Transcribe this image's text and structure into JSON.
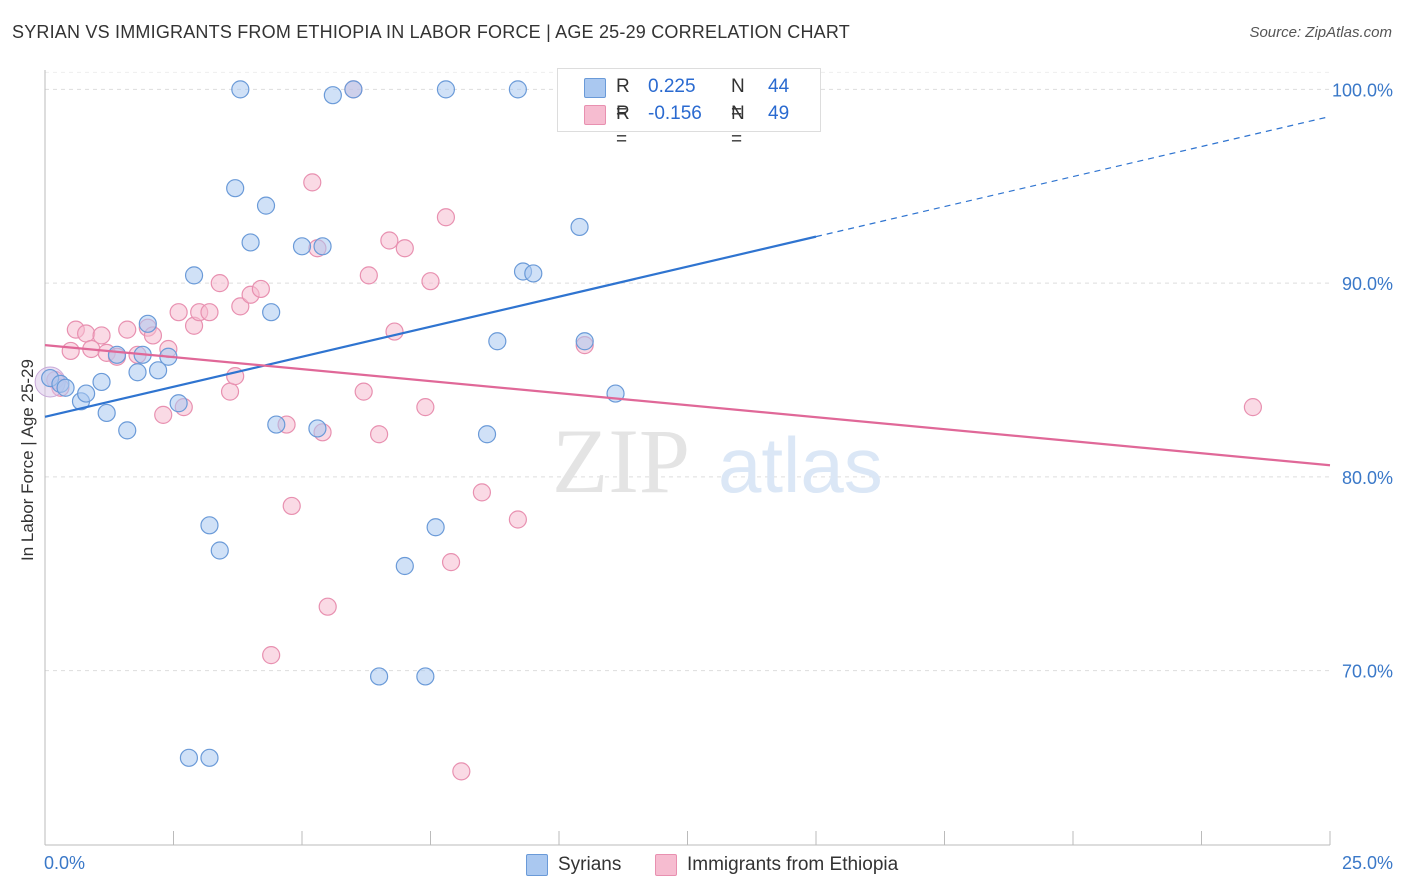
{
  "header": {
    "title": "SYRIAN VS IMMIGRANTS FROM ETHIOPIA IN LABOR FORCE | AGE 25-29 CORRELATION CHART",
    "source": "Source: ZipAtlas.com"
  },
  "watermark": {
    "zip": "ZIP",
    "atlas": "atlas"
  },
  "legend": {
    "rows": [
      {
        "r_label": "R =",
        "r_value": "0.225",
        "n_label": "N =",
        "n_value": "44"
      },
      {
        "r_label": "R =",
        "r_value": "-0.156",
        "n_label": "N =",
        "n_value": "49"
      }
    ]
  },
  "colors": {
    "syrians_fill": "#aac8f0",
    "syrians_stroke": "#6a9ad8",
    "syrians_line": "#2f74d0",
    "ethiopia_fill": "#f6bcd0",
    "ethiopia_stroke": "#e890b0",
    "ethiopia_line": "#e06898",
    "tick_label": "#3a78c8",
    "grid": "#dddddd"
  },
  "chart_data": {
    "type": "scatter",
    "title": "SYRIAN VS IMMIGRANTS FROM ETHIOPIA IN LABOR FORCE | AGE 25-29 CORRELATION CHART",
    "xlabel": "",
    "ylabel": "In Labor Force | Age 25-29",
    "xlim": [
      0,
      25
    ],
    "ylim": [
      61,
      101
    ],
    "x_tick_labels": [
      "0.0%",
      "25.0%"
    ],
    "y_ticks": [
      70,
      80,
      90,
      100
    ],
    "y_tick_labels": [
      "70.0%",
      "80.0%",
      "90.0%",
      "100.0%"
    ],
    "grid": true,
    "legend_position": "bottom-center",
    "series": [
      {
        "name": "Syrians",
        "color": "#aac8f0",
        "points": [
          [
            0.1,
            85.1
          ],
          [
            0.3,
            84.8
          ],
          [
            0.4,
            84.6
          ],
          [
            0.7,
            83.9
          ],
          [
            0.8,
            84.3
          ],
          [
            1.1,
            84.9
          ],
          [
            1.2,
            83.3
          ],
          [
            1.4,
            86.3
          ],
          [
            1.6,
            82.4
          ],
          [
            1.8,
            85.4
          ],
          [
            2.0,
            87.9
          ],
          [
            2.2,
            85.5
          ],
          [
            2.4,
            86.2
          ],
          [
            2.6,
            83.8
          ],
          [
            2.9,
            90.4
          ],
          [
            3.2,
            77.5
          ],
          [
            3.4,
            76.2
          ],
          [
            3.7,
            94.9
          ],
          [
            4.0,
            92.1
          ],
          [
            4.3,
            94.0
          ],
          [
            4.4,
            88.5
          ],
          [
            4.5,
            82.7
          ],
          [
            5.0,
            91.9
          ],
          [
            5.3,
            82.5
          ],
          [
            5.4,
            91.9
          ],
          [
            5.6,
            99.7
          ],
          [
            6.0,
            100.0
          ],
          [
            6.5,
            69.7
          ],
          [
            7.0,
            75.4
          ],
          [
            7.4,
            69.7
          ],
          [
            7.6,
            77.4
          ],
          [
            7.8,
            100.0
          ],
          [
            8.6,
            82.2
          ],
          [
            8.8,
            87.0
          ],
          [
            9.2,
            100.0
          ],
          [
            9.3,
            90.6
          ],
          [
            9.5,
            90.5
          ],
          [
            10.4,
            92.9
          ],
          [
            10.5,
            87.0
          ],
          [
            11.1,
            84.3
          ],
          [
            2.8,
            65.5
          ],
          [
            3.2,
            65.5
          ],
          [
            3.8,
            100.0
          ],
          [
            1.9,
            86.3
          ]
        ]
      },
      {
        "name": "Immigrants from Ethiopia",
        "color": "#f6bcd0",
        "points": [
          [
            0.2,
            85.0
          ],
          [
            0.5,
            86.5
          ],
          [
            0.6,
            87.6
          ],
          [
            0.8,
            87.4
          ],
          [
            0.9,
            86.6
          ],
          [
            1.1,
            87.3
          ],
          [
            1.2,
            86.4
          ],
          [
            1.4,
            86.2
          ],
          [
            1.6,
            87.6
          ],
          [
            1.8,
            86.3
          ],
          [
            2.0,
            87.7
          ],
          [
            2.1,
            87.3
          ],
          [
            2.3,
            83.2
          ],
          [
            2.4,
            86.6
          ],
          [
            2.6,
            88.5
          ],
          [
            2.7,
            83.6
          ],
          [
            2.9,
            87.8
          ],
          [
            3.0,
            88.5
          ],
          [
            3.2,
            88.5
          ],
          [
            3.4,
            90.0
          ],
          [
            3.6,
            84.4
          ],
          [
            3.7,
            85.2
          ],
          [
            3.8,
            88.8
          ],
          [
            4.0,
            89.4
          ],
          [
            4.2,
            89.7
          ],
          [
            4.4,
            70.8
          ],
          [
            4.7,
            82.7
          ],
          [
            4.8,
            78.5
          ],
          [
            5.2,
            95.2
          ],
          [
            5.3,
            91.8
          ],
          [
            5.4,
            82.3
          ],
          [
            5.5,
            73.3
          ],
          [
            6.0,
            100.0
          ],
          [
            6.2,
            84.4
          ],
          [
            6.3,
            90.4
          ],
          [
            6.5,
            82.2
          ],
          [
            6.7,
            92.2
          ],
          [
            6.8,
            87.5
          ],
          [
            7.0,
            91.8
          ],
          [
            7.4,
            83.6
          ],
          [
            7.5,
            90.1
          ],
          [
            7.8,
            93.4
          ],
          [
            7.9,
            75.6
          ],
          [
            8.1,
            64.8
          ],
          [
            8.5,
            79.2
          ],
          [
            9.2,
            77.8
          ],
          [
            10.5,
            86.8
          ],
          [
            23.5,
            83.6
          ],
          [
            0.3,
            84.6
          ]
        ]
      }
    ],
    "trendlines": [
      {
        "series": "Syrians",
        "x": [
          0,
          15
        ],
        "y": [
          83.1,
          92.4
        ],
        "dashed_extension_to": [
          25,
          98.6
        ]
      },
      {
        "series": "Immigrants from Ethiopia",
        "x": [
          0,
          25
        ],
        "y": [
          86.8,
          80.6
        ]
      }
    ]
  }
}
